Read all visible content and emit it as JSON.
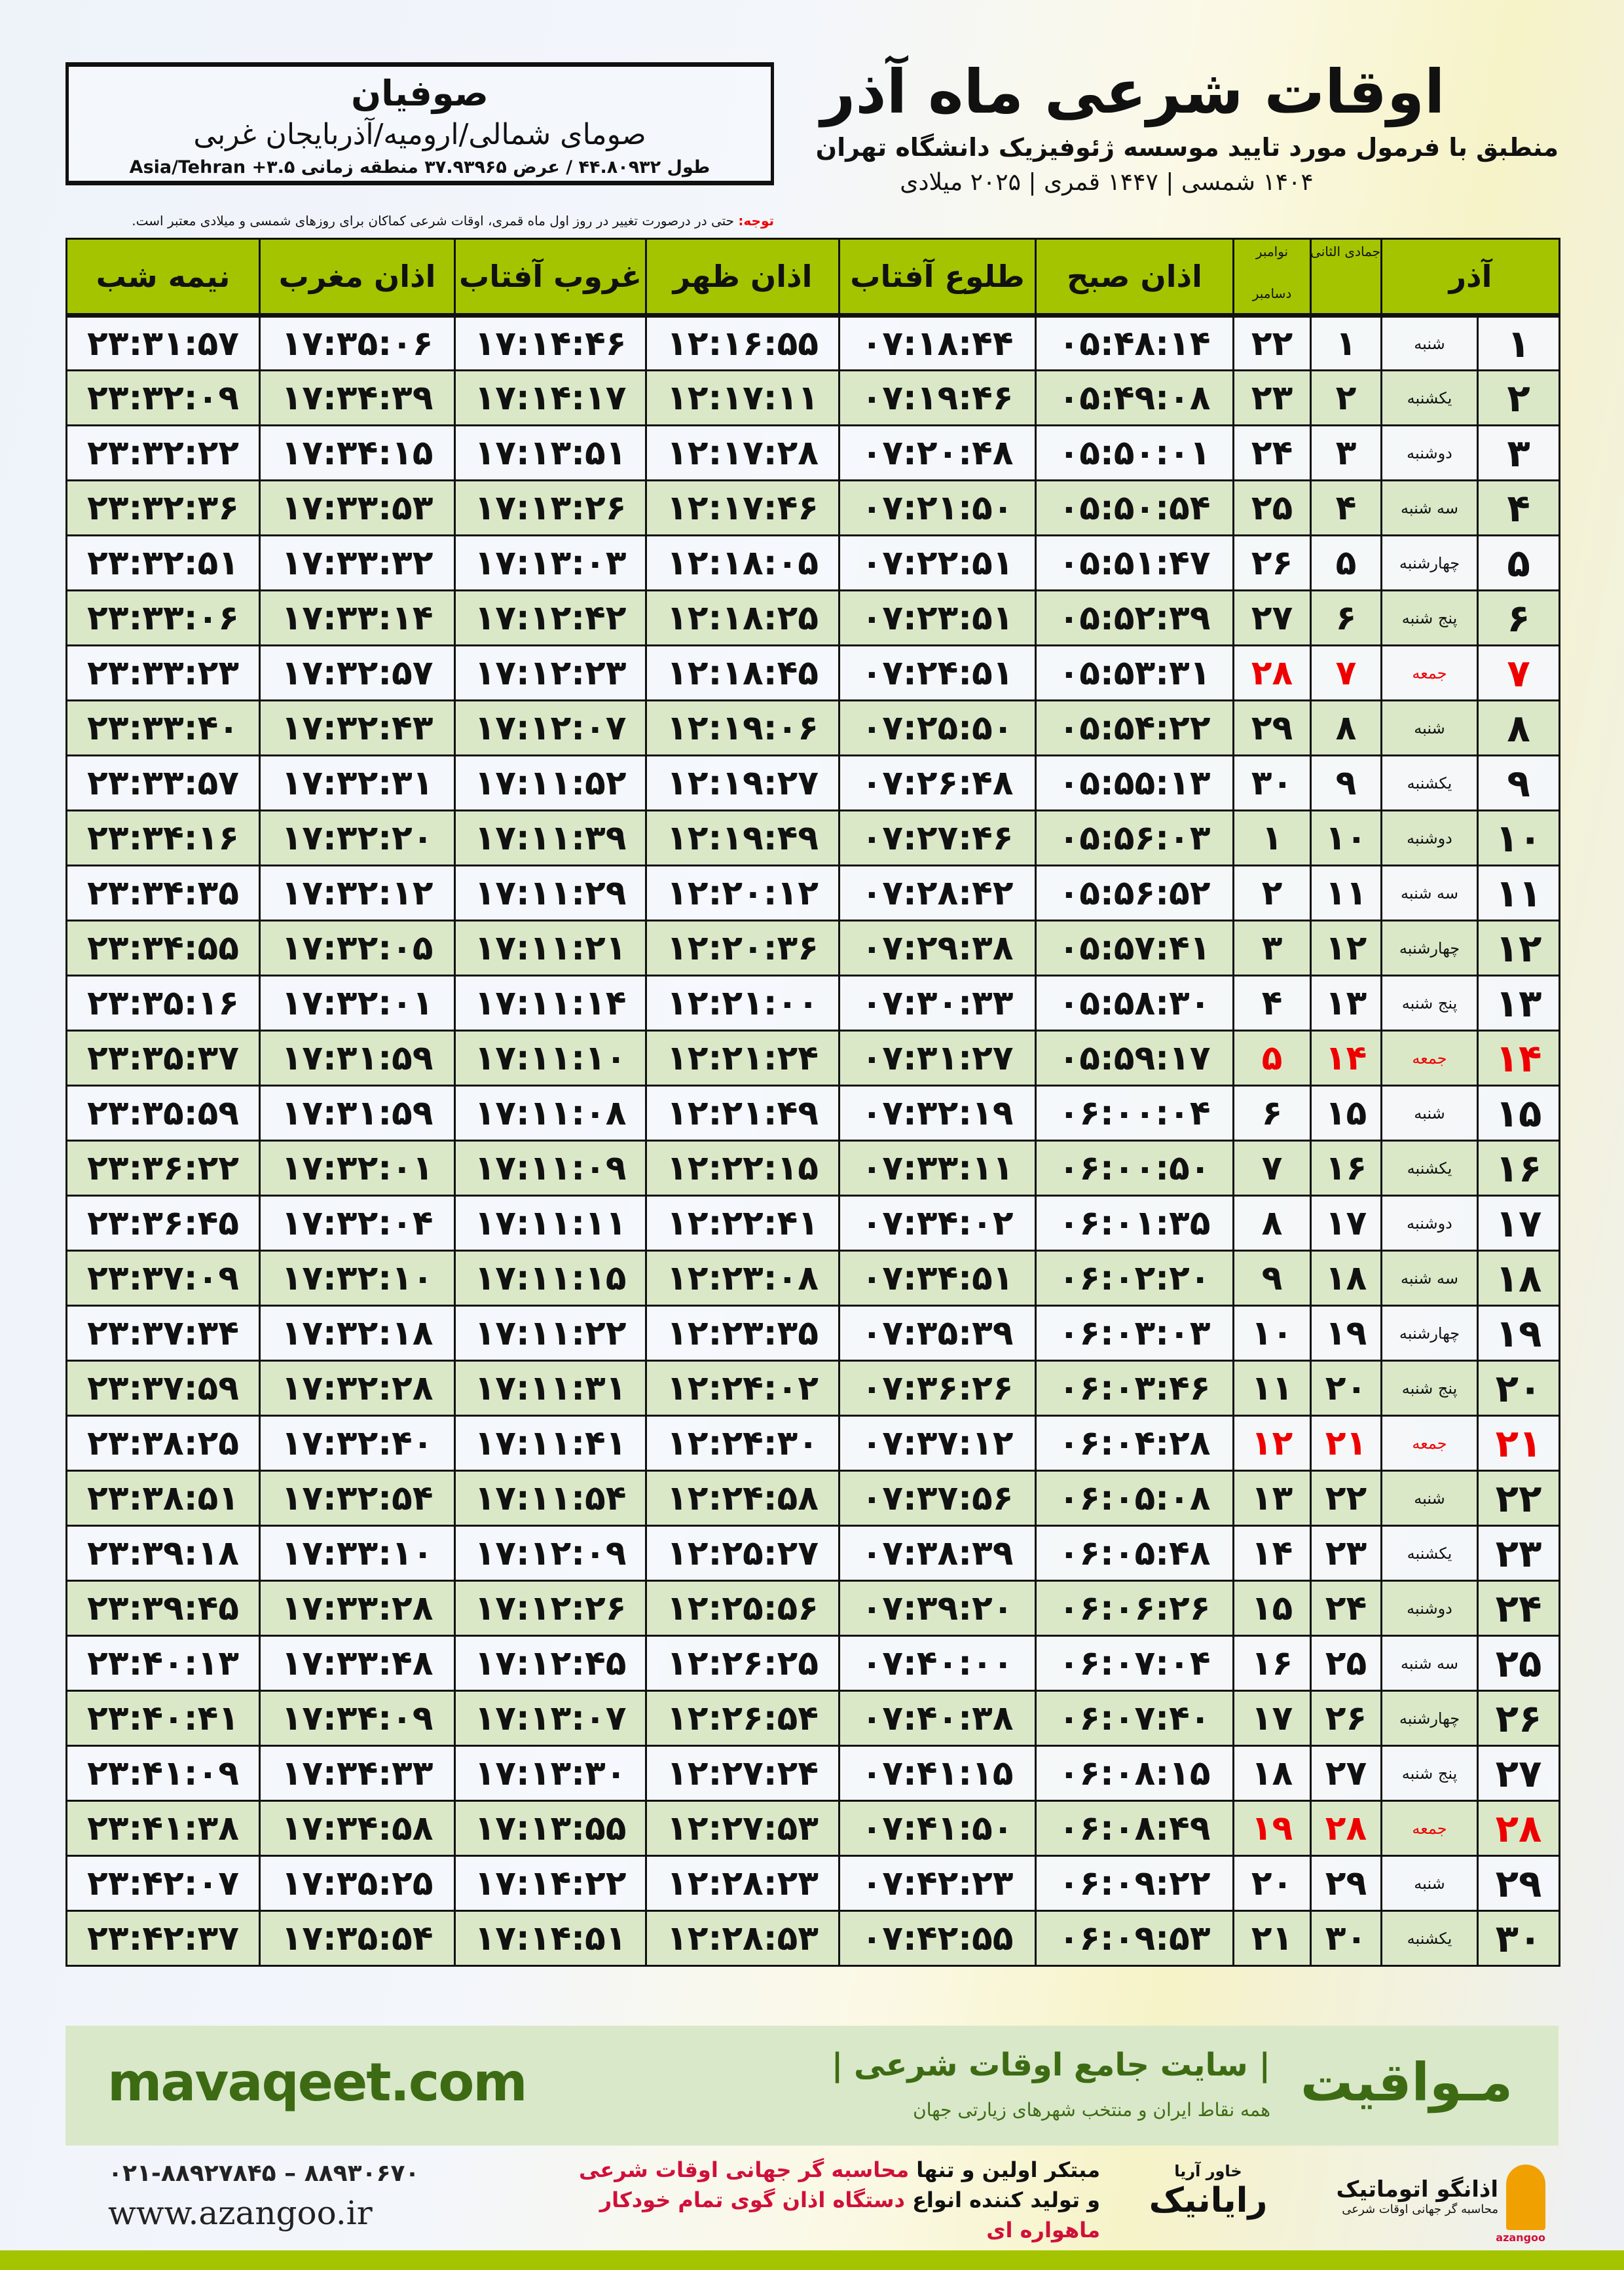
{
  "location": {
    "city": "صوفیان",
    "region": "صومای شمالی/ارومیه/آذربایجان غربی",
    "coords": "طول ۴۴.۸۰۹۳۲ / عرض ۳۷.۹۳۹۶۵ منطقه زمانی ۳.۵+ Asia/Tehran"
  },
  "header": {
    "title": "اوقات شرعی ماه آذر",
    "subtitle": "منطبق با فرمول مورد تایید موسسه ژئوفیزیک دانشگاه تهران",
    "years": "۱۴۰۴ شمسی | ۱۴۴۷ قمری | ۲۰۲۵ میلادی"
  },
  "note": {
    "label": "توجه:",
    "text": " حتی در درصورت تغییر در روز اول ماه قمری، اوقات شرعی کماکان برای روزهای شمسی و میلادی معتبر است."
  },
  "table": {
    "headers": {
      "month": "آذر",
      "hijri": "جمادی الثانی",
      "greg_top": "نوامبر",
      "greg_bottom": "دسامبر",
      "fajr": "اذان صبح",
      "sunrise": "طلوع آفتاب",
      "dhuhr": "اذان ظهر",
      "sunset": "غروب آفتاب",
      "maghrib": "اذان مغرب",
      "midnight": "نیمه شب"
    },
    "highlight_color": "#e00000",
    "rows": [
      [
        "۱",
        "شنبه",
        "۱",
        "۲۲",
        "۰۵:۴۸:۱۴",
        "۰۷:۱۸:۴۴",
        "۱۲:۱۶:۵۵",
        "۱۷:۱۴:۴۶",
        "۱۷:۳۵:۰۶",
        "۲۳:۳۱:۵۷"
      ],
      [
        "۲",
        "یکشنبه",
        "۲",
        "۲۳",
        "۰۵:۴۹:۰۸",
        "۰۷:۱۹:۴۶",
        "۱۲:۱۷:۱۱",
        "۱۷:۱۴:۱۷",
        "۱۷:۳۴:۳۹",
        "۲۳:۳۲:۰۹"
      ],
      [
        "۳",
        "دوشنبه",
        "۳",
        "۲۴",
        "۰۵:۵۰:۰۱",
        "۰۷:۲۰:۴۸",
        "۱۲:۱۷:۲۸",
        "۱۷:۱۳:۵۱",
        "۱۷:۳۴:۱۵",
        "۲۳:۳۲:۲۲"
      ],
      [
        "۴",
        "سه شنبه",
        "۴",
        "۲۵",
        "۰۵:۵۰:۵۴",
        "۰۷:۲۱:۵۰",
        "۱۲:۱۷:۴۶",
        "۱۷:۱۳:۲۶",
        "۱۷:۳۳:۵۳",
        "۲۳:۳۲:۳۶"
      ],
      [
        "۵",
        "چهارشنبه",
        "۵",
        "۲۶",
        "۰۵:۵۱:۴۷",
        "۰۷:۲۲:۵۱",
        "۱۲:۱۸:۰۵",
        "۱۷:۱۳:۰۳",
        "۱۷:۳۳:۳۲",
        "۲۳:۳۲:۵۱"
      ],
      [
        "۶",
        "پنج شنبه",
        "۶",
        "۲۷",
        "۰۵:۵۲:۳۹",
        "۰۷:۲۳:۵۱",
        "۱۲:۱۸:۲۵",
        "۱۷:۱۲:۴۲",
        "۱۷:۳۳:۱۴",
        "۲۳:۳۳:۰۶"
      ],
      [
        "۷",
        "جمعه",
        "۷",
        "۲۸",
        "۰۵:۵۳:۳۱",
        "۰۷:۲۴:۵۱",
        "۱۲:۱۸:۴۵",
        "۱۷:۱۲:۲۳",
        "۱۷:۳۲:۵۷",
        "۲۳:۳۳:۲۳"
      ],
      [
        "۸",
        "شنبه",
        "۸",
        "۲۹",
        "۰۵:۵۴:۲۲",
        "۰۷:۲۵:۵۰",
        "۱۲:۱۹:۰۶",
        "۱۷:۱۲:۰۷",
        "۱۷:۳۲:۴۳",
        "۲۳:۳۳:۴۰"
      ],
      [
        "۹",
        "یکشنبه",
        "۹",
        "۳۰",
        "۰۵:۵۵:۱۳",
        "۰۷:۲۶:۴۸",
        "۱۲:۱۹:۲۷",
        "۱۷:۱۱:۵۲",
        "۱۷:۳۲:۳۱",
        "۲۳:۳۳:۵۷"
      ],
      [
        "۱۰",
        "دوشنبه",
        "۱۰",
        "۱",
        "۰۵:۵۶:۰۳",
        "۰۷:۲۷:۴۶",
        "۱۲:۱۹:۴۹",
        "۱۷:۱۱:۳۹",
        "۱۷:۳۲:۲۰",
        "۲۳:۳۴:۱۶"
      ],
      [
        "۱۱",
        "سه شنبه",
        "۱۱",
        "۲",
        "۰۵:۵۶:۵۲",
        "۰۷:۲۸:۴۲",
        "۱۲:۲۰:۱۲",
        "۱۷:۱۱:۲۹",
        "۱۷:۳۲:۱۲",
        "۲۳:۳۴:۳۵"
      ],
      [
        "۱۲",
        "چهارشنبه",
        "۱۲",
        "۳",
        "۰۵:۵۷:۴۱",
        "۰۷:۲۹:۳۸",
        "۱۲:۲۰:۳۶",
        "۱۷:۱۱:۲۱",
        "۱۷:۳۲:۰۵",
        "۲۳:۳۴:۵۵"
      ],
      [
        "۱۳",
        "پنج شنبه",
        "۱۳",
        "۴",
        "۰۵:۵۸:۳۰",
        "۰۷:۳۰:۳۳",
        "۱۲:۲۱:۰۰",
        "۱۷:۱۱:۱۴",
        "۱۷:۳۲:۰۱",
        "۲۳:۳۵:۱۶"
      ],
      [
        "۱۴",
        "جمعه",
        "۱۴",
        "۵",
        "۰۵:۵۹:۱۷",
        "۰۷:۳۱:۲۷",
        "۱۲:۲۱:۲۴",
        "۱۷:۱۱:۱۰",
        "۱۷:۳۱:۵۹",
        "۲۳:۳۵:۳۷"
      ],
      [
        "۱۵",
        "شنبه",
        "۱۵",
        "۶",
        "۰۶:۰۰:۰۴",
        "۰۷:۳۲:۱۹",
        "۱۲:۲۱:۴۹",
        "۱۷:۱۱:۰۸",
        "۱۷:۳۱:۵۹",
        "۲۳:۳۵:۵۹"
      ],
      [
        "۱۶",
        "یکشنبه",
        "۱۶",
        "۷",
        "۰۶:۰۰:۵۰",
        "۰۷:۳۳:۱۱",
        "۱۲:۲۲:۱۵",
        "۱۷:۱۱:۰۹",
        "۱۷:۳۲:۰۱",
        "۲۳:۳۶:۲۲"
      ],
      [
        "۱۷",
        "دوشنبه",
        "۱۷",
        "۸",
        "۰۶:۰۱:۳۵",
        "۰۷:۳۴:۰۲",
        "۱۲:۲۲:۴۱",
        "۱۷:۱۱:۱۱",
        "۱۷:۳۲:۰۴",
        "۲۳:۳۶:۴۵"
      ],
      [
        "۱۸",
        "سه شنبه",
        "۱۸",
        "۹",
        "۰۶:۰۲:۲۰",
        "۰۷:۳۴:۵۱",
        "۱۲:۲۳:۰۸",
        "۱۷:۱۱:۱۵",
        "۱۷:۳۲:۱۰",
        "۲۳:۳۷:۰۹"
      ],
      [
        "۱۹",
        "چهارشنبه",
        "۱۹",
        "۱۰",
        "۰۶:۰۳:۰۳",
        "۰۷:۳۵:۳۹",
        "۱۲:۲۳:۳۵",
        "۱۷:۱۱:۲۲",
        "۱۷:۳۲:۱۸",
        "۲۳:۳۷:۳۴"
      ],
      [
        "۲۰",
        "پنج شنبه",
        "۲۰",
        "۱۱",
        "۰۶:۰۳:۴۶",
        "۰۷:۳۶:۲۶",
        "۱۲:۲۴:۰۲",
        "۱۷:۱۱:۳۱",
        "۱۷:۳۲:۲۸",
        "۲۳:۳۷:۵۹"
      ],
      [
        "۲۱",
        "جمعه",
        "۲۱",
        "۱۲",
        "۰۶:۰۴:۲۸",
        "۰۷:۳۷:۱۲",
        "۱۲:۲۴:۳۰",
        "۱۷:۱۱:۴۱",
        "۱۷:۳۲:۴۰",
        "۲۳:۳۸:۲۵"
      ],
      [
        "۲۲",
        "شنبه",
        "۲۲",
        "۱۳",
        "۰۶:۰۵:۰۸",
        "۰۷:۳۷:۵۶",
        "۱۲:۲۴:۵۸",
        "۱۷:۱۱:۵۴",
        "۱۷:۳۲:۵۴",
        "۲۳:۳۸:۵۱"
      ],
      [
        "۲۳",
        "یکشنبه",
        "۲۳",
        "۱۴",
        "۰۶:۰۵:۴۸",
        "۰۷:۳۸:۳۹",
        "۱۲:۲۵:۲۷",
        "۱۷:۱۲:۰۹",
        "۱۷:۳۳:۱۰",
        "۲۳:۳۹:۱۸"
      ],
      [
        "۲۴",
        "دوشنبه",
        "۲۴",
        "۱۵",
        "۰۶:۰۶:۲۶",
        "۰۷:۳۹:۲۰",
        "۱۲:۲۵:۵۶",
        "۱۷:۱۲:۲۶",
        "۱۷:۳۳:۲۸",
        "۲۳:۳۹:۴۵"
      ],
      [
        "۲۵",
        "سه شنبه",
        "۲۵",
        "۱۶",
        "۰۶:۰۷:۰۴",
        "۰۷:۴۰:۰۰",
        "۱۲:۲۶:۲۵",
        "۱۷:۱۲:۴۵",
        "۱۷:۳۳:۴۸",
        "۲۳:۴۰:۱۳"
      ],
      [
        "۲۶",
        "چهارشنبه",
        "۲۶",
        "۱۷",
        "۰۶:۰۷:۴۰",
        "۰۷:۴۰:۳۸",
        "۱۲:۲۶:۵۴",
        "۱۷:۱۳:۰۷",
        "۱۷:۳۴:۰۹",
        "۲۳:۴۰:۴۱"
      ],
      [
        "۲۷",
        "پنج شنبه",
        "۲۷",
        "۱۸",
        "۰۶:۰۸:۱۵",
        "۰۷:۴۱:۱۵",
        "۱۲:۲۷:۲۴",
        "۱۷:۱۳:۳۰",
        "۱۷:۳۴:۳۳",
        "۲۳:۴۱:۰۹"
      ],
      [
        "۲۸",
        "جمعه",
        "۲۸",
        "۱۹",
        "۰۶:۰۸:۴۹",
        "۰۷:۴۱:۵۰",
        "۱۲:۲۷:۵۳",
        "۱۷:۱۳:۵۵",
        "۱۷:۳۴:۵۸",
        "۲۳:۴۱:۳۸"
      ],
      [
        "۲۹",
        "شنبه",
        "۲۹",
        "۲۰",
        "۰۶:۰۹:۲۲",
        "۰۷:۴۲:۲۳",
        "۱۲:۲۸:۲۳",
        "۱۷:۱۴:۲۲",
        "۱۷:۳۵:۲۵",
        "۲۳:۴۲:۰۷"
      ],
      [
        "۳۰",
        "یکشنبه",
        "۳۰",
        "۲۱",
        "۰۶:۰۹:۵۳",
        "۰۷:۴۲:۵۵",
        "۱۲:۲۸:۵۳",
        "۱۷:۱۴:۵۱",
        "۱۷:۳۵:۵۴",
        "۲۳:۴۲:۳۷"
      ]
    ]
  },
  "banner": {
    "brand": "مـواقیت",
    "slogan": "| سایت جامع اوقات شرعی |",
    "sub": "همه نقاط ایران و منتخب شهرهای زیارتی جهان",
    "site": "mavaqeet.com"
  },
  "footer": {
    "phone": "۰۲۱-۸۸۹۲۷۸۴۵ – ۸۸۹۳۰۶۷۰",
    "web": "www.azangoo.ir",
    "line1_a": "مبتکر اولین و تنها ",
    "line1_b": "محاسبه گر جهانی اوقات شرعی",
    "line2_a": "و تولید کننده انواع ",
    "line2_b": "دستگاه اذان گوی تمام خودکار ماهواره ای",
    "raya": "رایانیک",
    "raya_sub": "خاور آریا",
    "az_name": "اذانگو اتوماتیک",
    "az_sub": "محاسبه گر جهانی اوقات شرعی",
    "az_latin": "azangoo"
  }
}
